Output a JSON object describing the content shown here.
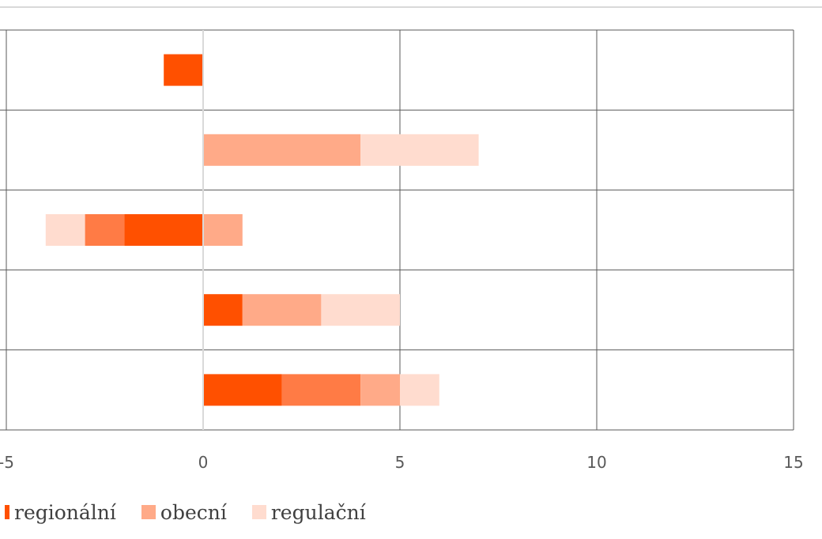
{
  "chart_data": {
    "type": "bar",
    "orientation": "horizontal",
    "stacked": true,
    "xlim": [
      -5,
      15
    ],
    "x_ticks": [
      -5,
      0,
      5,
      10,
      15
    ],
    "x_tick_labels": [
      "-5",
      "0",
      "5",
      "10",
      "15"
    ],
    "grid": true,
    "legend_position": "bottom-left",
    "category_labels_visible": false,
    "rows": 5,
    "segments": [
      {
        "row": 0,
        "series": "regionální",
        "from": -1,
        "to": 0
      },
      {
        "row": 1,
        "series": "obecní",
        "from": 0,
        "to": 4
      },
      {
        "row": 1,
        "series": "regulační",
        "from": 4,
        "to": 7
      },
      {
        "row": 2,
        "series": "regulační",
        "from": -4,
        "to": -3
      },
      {
        "row": 2,
        "series": "obecní",
        "from": -3,
        "to": -2
      },
      {
        "row": 2,
        "series": "regionální",
        "from": -2,
        "to": 0
      },
      {
        "row": 2,
        "series": "obecní",
        "from": 0,
        "to": 1
      },
      {
        "row": 3,
        "series": "regionální",
        "from": 0,
        "to": 1
      },
      {
        "row": 3,
        "series": "obecní",
        "from": 1,
        "to": 3
      },
      {
        "row": 3,
        "series": "regulační",
        "from": 3,
        "to": 5
      },
      {
        "row": 4,
        "series": "regionální",
        "from": 0,
        "to": 2
      },
      {
        "row": 4,
        "series": "obecní",
        "from": 2,
        "to": 4
      },
      {
        "row": 4,
        "series": "obecní",
        "from": 4,
        "to": 5
      },
      {
        "row": 4,
        "series": "regulační",
        "from": 5,
        "to": 6
      }
    ],
    "series_colors": {
      "regionální": "#FF5000",
      "obecní": "#FFAA88",
      "regulační": "#FFDCCF"
    },
    "segment_color_overrides": [
      {
        "row": 2,
        "index": 1,
        "color": "#FF7B45"
      },
      {
        "row": 4,
        "index": 1,
        "color": "#FF7B45"
      }
    ]
  },
  "legend": {
    "items": [
      {
        "label": "regionální",
        "color": "#FF5000"
      },
      {
        "label": "obecní",
        "color": "#FFAA88"
      },
      {
        "label": "regulační",
        "color": "#FFDCCF"
      }
    ]
  }
}
